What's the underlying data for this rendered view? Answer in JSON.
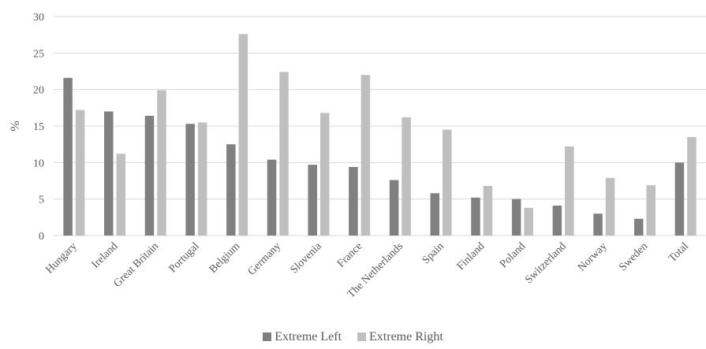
{
  "chart_data": {
    "type": "bar",
    "title": "",
    "xlabel": "",
    "ylabel": "%",
    "ylim": [
      0,
      30
    ],
    "yticks": [
      0,
      5,
      10,
      15,
      20,
      25,
      30
    ],
    "grid": true,
    "legend_position": "bottom",
    "categories": [
      "Hungary",
      "Ireland",
      "Great Britain",
      "Portugal",
      "Belgium",
      "Germany",
      "Slovenia",
      "France",
      "The Netherlands",
      "Spain",
      "Finland",
      "Poland",
      "Switzerland",
      "Norway",
      "Sweden",
      "Total"
    ],
    "series": [
      {
        "name": "Extreme Left",
        "color": "#808080",
        "values": [
          21.6,
          17.0,
          16.4,
          15.3,
          12.5,
          10.4,
          9.7,
          9.4,
          7.6,
          5.8,
          5.2,
          5.0,
          4.1,
          3.0,
          2.3,
          10.0
        ]
      },
      {
        "name": "Extreme Right",
        "color": "#bfbfbf",
        "values": [
          17.2,
          11.2,
          19.9,
          15.5,
          27.6,
          22.4,
          16.8,
          22.0,
          16.2,
          14.5,
          6.8,
          3.8,
          12.2,
          7.9,
          6.9,
          13.5
        ]
      }
    ]
  }
}
